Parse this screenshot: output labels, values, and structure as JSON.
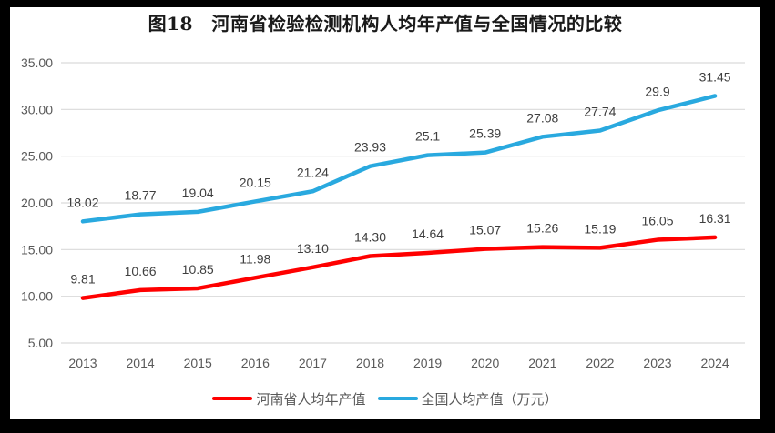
{
  "title": "图18　河南省检验检测机构人均年产值与全国情况的比较",
  "colors": {
    "henan": "#FF0000",
    "national": "#29A9DF",
    "grid": "#D9D9D9",
    "tick_text": "#595959",
    "data_label_text": "#3F3F3F",
    "frame": "#000000"
  },
  "chart_data": {
    "type": "line",
    "title": "图18　河南省检验检测机构人均年产值与全国情况的比较",
    "xlabel": "",
    "ylabel": "",
    "categories": [
      "2013",
      "2014",
      "2015",
      "2016",
      "2017",
      "2018",
      "2019",
      "2020",
      "2021",
      "2022",
      "2023",
      "2024"
    ],
    "series": [
      {
        "id": "henan",
        "name": "河南省人均年产值",
        "color": "#FF0000",
        "values": [
          9.81,
          10.66,
          10.85,
          11.98,
          13.1,
          14.3,
          14.64,
          15.07,
          15.26,
          15.19,
          16.05,
          16.31
        ],
        "labels": [
          "9.81",
          "10.66",
          "10.85",
          "11.98",
          "13.10",
          "14.30",
          "14.64",
          "15.07",
          "15.26",
          "15.19",
          "16.05",
          "16.31"
        ]
      },
      {
        "id": "national",
        "name": "全国人均产值（万元）",
        "color": "#29A9DF",
        "values": [
          18.02,
          18.77,
          19.04,
          20.15,
          21.24,
          23.93,
          25.1,
          25.39,
          27.08,
          27.74,
          29.9,
          31.45
        ],
        "labels": [
          "18.02",
          "18.77",
          "19.04",
          "20.15",
          "21.24",
          "23.93",
          "25.1",
          "25.39",
          "27.08",
          "27.74",
          "29.9",
          "31.45"
        ]
      }
    ],
    "y_ticks": [
      "5.00",
      "10.00",
      "15.00",
      "20.00",
      "25.00",
      "30.00",
      "35.00"
    ],
    "ylim": [
      5,
      35
    ],
    "grid": "horizontal",
    "legend_position": "bottom"
  },
  "legend": {
    "items": [
      {
        "label": "河南省人均年产值",
        "color": "#FF0000"
      },
      {
        "label": "全国人均产值（万元）",
        "color": "#29A9DF"
      }
    ]
  }
}
